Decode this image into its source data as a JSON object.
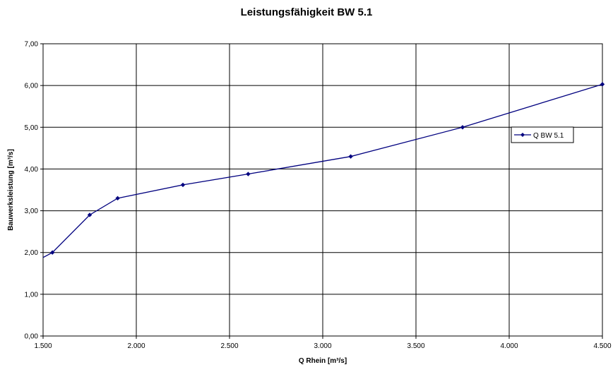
{
  "chart_data": {
    "type": "line",
    "title": "Leistungsfähigkeit BW 5.1",
    "xlabel": "Q Rhein [m³/s]",
    "ylabel": "Bauwerksleistung [m³/s]",
    "xlim": [
      1500,
      4500
    ],
    "ylim": [
      0,
      7
    ],
    "x_ticks": [
      1500,
      2000,
      2500,
      3000,
      3500,
      4000,
      4500
    ],
    "x_tick_labels": [
      "1.500",
      "2.000",
      "2.500",
      "3.000",
      "3.500",
      "4.000",
      "4.500"
    ],
    "y_ticks": [
      0,
      1,
      2,
      3,
      4,
      5,
      6,
      7
    ],
    "y_tick_labels": [
      "0,00",
      "1,00",
      "2,00",
      "3,00",
      "4,00",
      "5,00",
      "6,00",
      "7,00"
    ],
    "grid": true,
    "legend_position": "right",
    "line_start": {
      "x": 1500,
      "y": 1.88
    },
    "series": [
      {
        "name": "Q BW 5.1",
        "color": "#00007f",
        "marker": "diamond",
        "x": [
          1550,
          1750,
          1900,
          2250,
          2600,
          3150,
          3750,
          4500
        ],
        "y": [
          2.0,
          2.9,
          3.3,
          3.62,
          3.88,
          4.3,
          5.0,
          6.03
        ]
      }
    ]
  }
}
